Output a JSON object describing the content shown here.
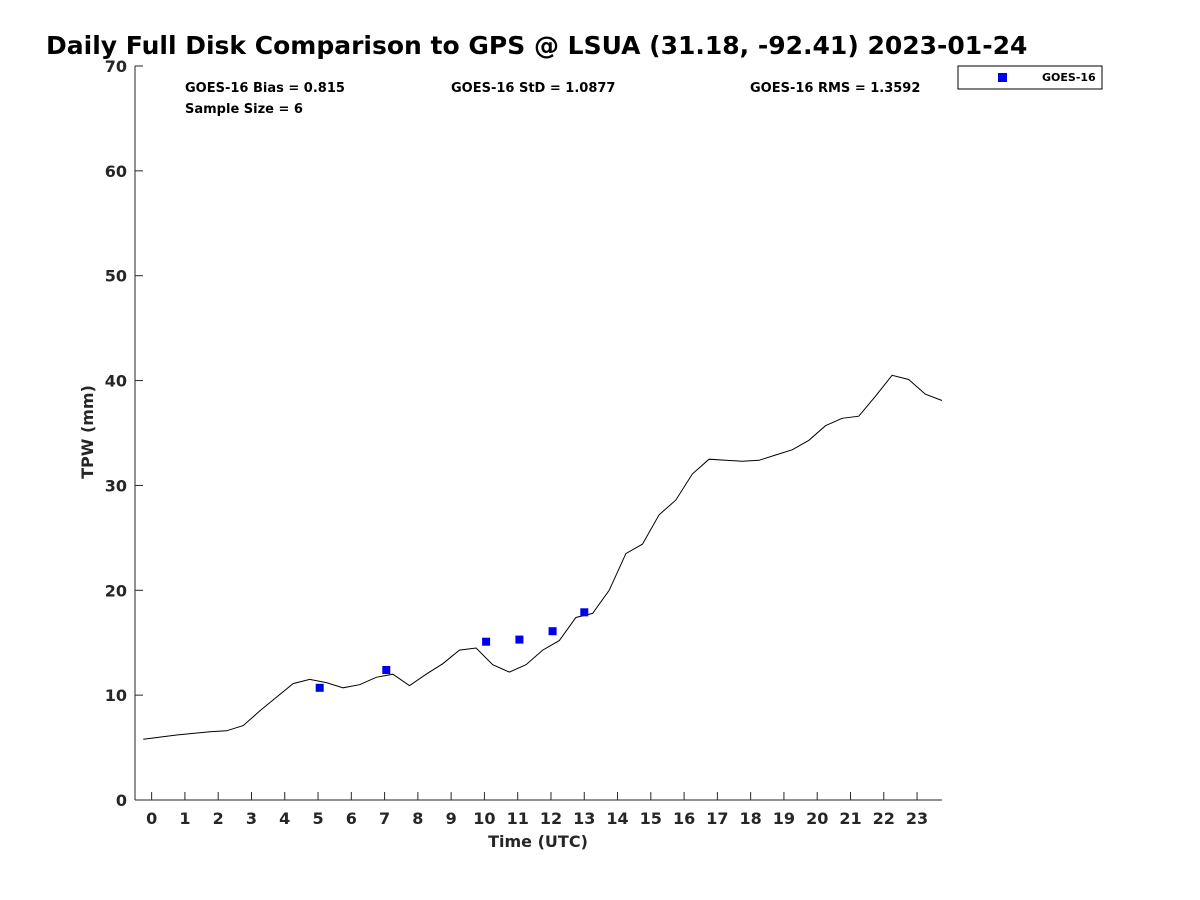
{
  "chart_data": {
    "type": "scatter",
    "title": "Daily Full Disk Comparison to GPS @ LSUA (31.18, -92.41) 2023-01-24",
    "xlabel": "Time (UTC)",
    "ylabel": "TPW (mm)",
    "xlim": [
      -0.5,
      23.75
    ],
    "ylim": [
      0,
      70
    ],
    "xticks": [
      "0",
      "1",
      "2",
      "3",
      "4",
      "5",
      "6",
      "7",
      "8",
      "9",
      "10",
      "11",
      "12",
      "13",
      "14",
      "15",
      "16",
      "17",
      "18",
      "19",
      "20",
      "21",
      "22",
      "23"
    ],
    "yticks": [
      "0",
      "10",
      "20",
      "30",
      "40",
      "50",
      "60",
      "70"
    ],
    "grid": false,
    "legend": {
      "placement": "top-right",
      "label": "GOES-16"
    },
    "stats": {
      "bias": "GOES-16 Bias = 0.815",
      "std": "GOES-16 StD = 1.0877",
      "rms": "GOES-16 RMS = 1.3592",
      "sample": "Sample Size = 6"
    },
    "colors": {
      "goes": "#0000ee",
      "gps": "#000000"
    },
    "series": [
      {
        "name": "GOES-16",
        "kind": "scatter",
        "x": [
          5.05,
          7.05,
          10.05,
          11.05,
          12.05,
          13.0
        ],
        "y": [
          10.7,
          12.4,
          15.1,
          15.3,
          16.1,
          17.9
        ]
      },
      {
        "kind": "line",
        "x": [
          -0.25,
          0.75,
          1.75,
          2.25,
          2.75,
          3.25,
          3.75,
          4.25,
          4.75,
          5.25,
          5.75,
          6.25,
          6.75,
          7.25,
          7.75,
          8.25,
          8.75,
          9.25,
          9.75,
          10.25,
          10.75,
          11.25,
          11.75,
          12.25,
          12.75,
          13.25,
          13.75,
          14.25,
          14.75,
          15.25,
          15.75,
          16.25,
          16.75,
          17.25,
          17.75,
          18.25,
          18.75,
          19.25,
          19.75,
          20.25,
          20.75,
          21.25,
          21.75,
          22.25,
          22.75,
          23.25,
          23.75
        ],
        "y": [
          5.8,
          6.2,
          6.5,
          6.6,
          7.1,
          8.5,
          9.8,
          11.1,
          11.5,
          11.2,
          10.7,
          11.0,
          11.7,
          12.0,
          10.9,
          12.0,
          13.0,
          14.3,
          14.5,
          12.9,
          12.2,
          12.9,
          14.3,
          15.2,
          17.4,
          17.8,
          20.0,
          23.5,
          24.4,
          27.2,
          28.6,
          31.1,
          32.5,
          32.4,
          32.3,
          32.4,
          32.9,
          33.4,
          34.3,
          35.7,
          36.4,
          36.6,
          38.5,
          40.5,
          40.1,
          38.7,
          38.1
        ]
      }
    ]
  }
}
